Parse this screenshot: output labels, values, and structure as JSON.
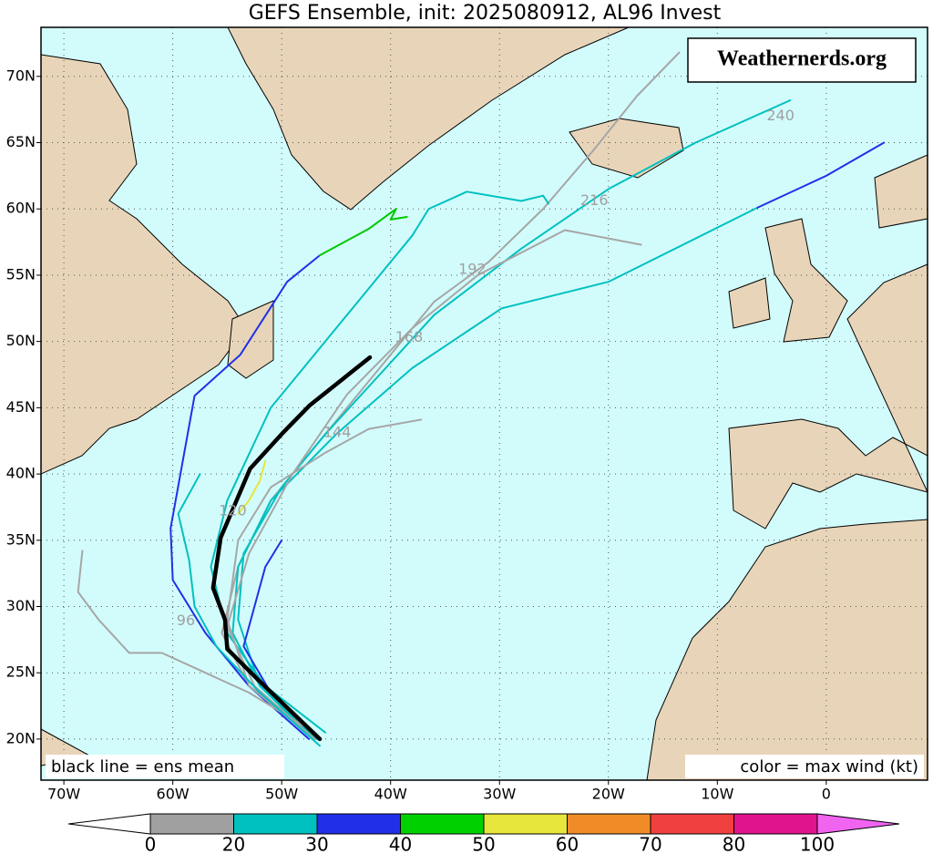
{
  "chart_data": {
    "type": "map",
    "title": "GEFS Ensemble, init: 2025080912, AL96 Invest",
    "watermark": "Weathernerds.org",
    "note_left": "black line = ens mean",
    "note_right": "color = max wind (kt)",
    "xlim": [
      -72.1,
      9.3
    ],
    "ylim": [
      16.9,
      73.7
    ],
    "xticks": [
      {
        "value": -70,
        "label": "70W"
      },
      {
        "value": -60,
        "label": "60W"
      },
      {
        "value": -50,
        "label": "50W"
      },
      {
        "value": -40,
        "label": "40W"
      },
      {
        "value": -30,
        "label": "30W"
      },
      {
        "value": -20,
        "label": "20W"
      },
      {
        "value": -10,
        "label": "10W"
      },
      0
    ],
    "yticks": [
      {
        "value": 20,
        "label": "20N"
      },
      {
        "value": 25,
        "label": "25N"
      },
      {
        "value": 30,
        "label": "30N"
      },
      {
        "value": 35,
        "label": "35N"
      },
      {
        "value": 40,
        "label": "40N"
      },
      {
        "value": 45,
        "label": "45N"
      },
      {
        "value": 50,
        "label": "50N"
      },
      {
        "value": 55,
        "label": "55N"
      },
      {
        "value": 60,
        "label": "60N"
      },
      {
        "value": 65,
        "label": "65N"
      },
      {
        "value": 70,
        "label": "70N"
      }
    ],
    "grid": true,
    "tracks": [
      {
        "color": "#a6a6a6",
        "lon": [
          -47,
          -53,
          -55.5,
          -54,
          -51,
          -47,
          -42,
          -36,
          -31,
          -26,
          -21.3,
          -17.4,
          -13.5
        ],
        "lat": [
          20.5,
          24,
          28,
          33,
          38,
          42,
          47,
          53,
          56,
          60,
          64.5,
          68.5,
          71.8
        ]
      },
      {
        "color": "#00c0c0",
        "lon": [
          -46.8,
          -52,
          -54,
          -53.5,
          -50,
          -46,
          -41,
          -36,
          -28,
          -20,
          -12,
          -3.3
        ],
        "lat": [
          20,
          24,
          29,
          34,
          39,
          43,
          47.5,
          52,
          57,
          61.5,
          65,
          68.2
        ]
      },
      {
        "color": "#00c0c0",
        "lon": [
          -47,
          -52,
          -54.5,
          -54,
          -51,
          -45,
          -38,
          -29.8,
          -20,
          -6.3
        ],
        "lat": [
          20,
          24,
          28,
          33,
          38,
          43,
          48,
          52.5,
          54.5,
          60.1
        ]
      },
      {
        "color": "#2030e8",
        "lon": [
          -6.3,
          0,
          5.3
        ],
        "lat": [
          60.1,
          62.5,
          65
        ]
      },
      {
        "color": "#2030e8",
        "lon": [
          -47.5,
          -53,
          -57,
          -60,
          -60.2,
          -58,
          -53.8,
          -49.5,
          -46.5
        ],
        "lat": [
          20,
          24,
          28,
          32,
          35.9,
          45.9,
          49,
          54.5,
          56.5
        ]
      },
      {
        "color": "#00c800",
        "lon": [
          -46.5,
          -42,
          -39.5,
          -40,
          -38.5
        ],
        "lat": [
          56.5,
          58.5,
          60,
          59.2,
          59.4
        ]
      },
      {
        "color": "#00c0c0",
        "lon": [
          -46,
          -51.5,
          -55,
          -56.5,
          -55,
          -51,
          -46,
          -42,
          -38,
          -36.5,
          -33,
          -28,
          -26,
          -25.5
        ],
        "lat": [
          20.5,
          24,
          28,
          33,
          38,
          45,
          50,
          54,
          58,
          60,
          61.3,
          60.6,
          61,
          60.4
        ]
      },
      {
        "color": "#a6a6a6",
        "lon": [
          -47,
          -52.5,
          -55,
          -53,
          -49,
          -44,
          -38,
          -32,
          -24,
          -17
        ],
        "lat": [
          20,
          24,
          28.5,
          34,
          40,
          46,
          51,
          55,
          58.4,
          57.3
        ]
      },
      {
        "color": "#a6a6a6",
        "lon": [
          -47,
          -53,
          -55,
          -54,
          -51,
          -46,
          -42,
          -37.2
        ],
        "lat": [
          20,
          24,
          29,
          35,
          39,
          41.6,
          43.4,
          44.1
        ]
      },
      {
        "color": "#a6a6a6",
        "lon": [
          -48,
          -53,
          -57,
          -61,
          -64,
          -66.8,
          -68.7,
          -68.3
        ],
        "lat": [
          21,
          23.5,
          25,
          26.5,
          26.5,
          29,
          31.1,
          34.2
        ]
      },
      {
        "color": "#00c0c0",
        "lon": [
          -46.5,
          -52,
          -56,
          -58,
          -58.5,
          -59.5,
          -57.5
        ],
        "lat": [
          19.5,
          23.5,
          27,
          30,
          33.5,
          37,
          40
        ]
      },
      {
        "color": "#2030e8",
        "lon": [
          -46.8,
          -51,
          -53.5,
          -52.5,
          -51.5,
          -50
        ],
        "lat": [
          20.2,
          23.5,
          27,
          30,
          33,
          35
        ]
      },
      {
        "color": "#e6e63c",
        "lon": [
          -54,
          -53,
          -52,
          -51.5
        ],
        "lat": [
          37,
          38,
          39.5,
          41
        ]
      }
    ],
    "mean": {
      "color": "#000000",
      "lon": [
        -46.5,
        -52.2,
        -55,
        -55.2,
        -56.3,
        -55.6,
        -52.9,
        -49.9,
        -47.4,
        -41.9
      ],
      "lat": [
        20,
        24.5,
        26.8,
        29,
        31.4,
        35.2,
        40.4,
        43.1,
        45.2,
        48.8
      ]
    },
    "annotations": [
      {
        "text": "240",
        "lon": -4.2,
        "lat": 67
      },
      {
        "text": "216",
        "lon": -21.3,
        "lat": 60.6
      },
      {
        "text": "192",
        "lon": -32.5,
        "lat": 55.4
      },
      {
        "text": "168",
        "lon": -38.3,
        "lat": 50.3
      },
      {
        "text": "144",
        "lon": -44.9,
        "lat": 43.1
      },
      {
        "text": "96",
        "lon": -58.8,
        "lat": 28.9
      },
      {
        "text": "120",
        "lon": -54.5,
        "lat": 37.2
      }
    ],
    "colorbar": {
      "ticks": [
        0,
        20,
        30,
        40,
        50,
        60,
        70,
        80,
        100
      ],
      "colors": [
        "#a0a0a0",
        "#00c0c0",
        "#2030e8",
        "#00d000",
        "#e6e63c",
        "#f08c28",
        "#f04040",
        "#e0148c"
      ],
      "under_color": "#ffffff",
      "over_color": "#f064f0"
    },
    "ocean_color": "#d2fcfc",
    "land_color": "#e8d5b9"
  }
}
